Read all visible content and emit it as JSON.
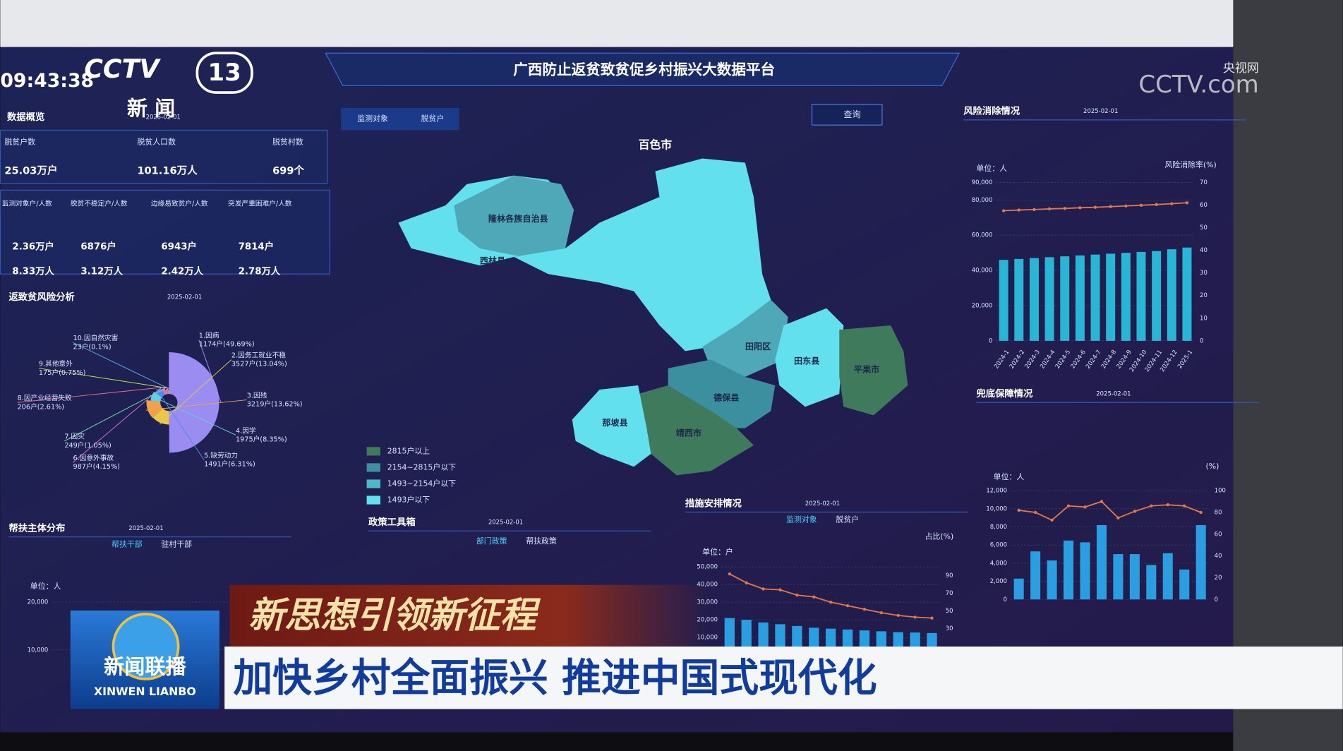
{
  "broadcast": {
    "clock": "09:43:38",
    "channel_logo": "CCTV",
    "channel_number": "13",
    "channel_name": "新 闻",
    "watermark_top": "央视网",
    "watermark_logo": "CCTV.com",
    "program_name": "新闻联播",
    "program_pinyin": "XINWEN LIANBO",
    "slogan": "新思想引领新征程",
    "headline": "加快乡村全面振兴 推进中国式现代化"
  },
  "dashboard": {
    "title": "广西防止返贫致贫促乡村振兴大数据平台",
    "search": "查询",
    "map_tabs": [
      "监测对象",
      "脱贫户"
    ],
    "overview": {
      "title": "数据概览",
      "date": "2025-02-01",
      "stats": [
        {
          "label": "脱贫户数",
          "value": "25.03万户"
        },
        {
          "label": "脱贫人口数",
          "value": "101.16万人"
        },
        {
          "label": "脱贫村数",
          "value": "699个"
        }
      ],
      "monitor": [
        {
          "label": "监测对象户/人数",
          "values": [
            "2.36万户",
            "8.33万人"
          ]
        },
        {
          "label": "脱贫不稳定户/人数",
          "values": [
            "6876户",
            "3.12万人"
          ]
        },
        {
          "label": "边缘易致贫户/人数",
          "values": [
            "6943户",
            "2.42万人"
          ]
        },
        {
          "label": "突发严重困难户/人数",
          "values": [
            "7814户",
            "2.78万人"
          ]
        }
      ]
    },
    "risk": {
      "title": "返致贫风险分析",
      "date": "2025-02-01",
      "chart": {
        "type": "pie",
        "names": [
          "1.因病",
          "2.因务工就业不稳",
          "3.因残",
          "4.因学",
          "5.缺劳动力",
          "6.因意外事故",
          "7.因灾",
          "8.因产业经营失败",
          "9.其他意外",
          "10.因自然灾害"
        ],
        "values": [
          49.69,
          13.04,
          13.62,
          8.35,
          6.31,
          4.15,
          1.05,
          2.61,
          0.75,
          0.1
        ],
        "value_labels": [
          "1174户(49.69%)",
          "3527户(13.04%)",
          "3219户(13.62%)",
          "1975户(8.35%)",
          "1491户(6.31%)",
          "987户(4.15%)",
          "249户(1.05%)",
          "206户(2.61%)",
          "175户(0.75%)",
          "23户(0.1%)"
        ],
        "colors": [
          "#9a8cf0",
          "#e8c84a",
          "#f0a24a",
          "#5fd0e8",
          "#4a8ef0",
          "#d86ad8",
          "#6ae0a8",
          "#f06a8a",
          "#c0e050",
          "#50b0f0"
        ]
      }
    },
    "map": {
      "city": "百色市",
      "regions": [
        "隆林各族自治县",
        "西林县",
        "田阳区",
        "田东县",
        "德保县",
        "靖西市",
        "平果市",
        "那坡县"
      ],
      "legend": [
        {
          "label": "2815户以上",
          "color": "#3f7a5c"
        },
        {
          "label": "2154~2815户以下",
          "color": "#3b8f9e"
        },
        {
          "label": "1493~2154户以下",
          "color": "#4fb8c8"
        },
        {
          "label": "1493户以下",
          "color": "#63e0ee"
        }
      ]
    },
    "support": {
      "title": "帮扶主体分布",
      "date": "2025-02-01",
      "tabs": [
        "帮扶干部",
        "驻村干部"
      ],
      "unit": "单位：人",
      "chart": {
        "type": "bar",
        "ylim": [
          0,
          20000
        ],
        "yticks": [
          {
            "value": 10000,
            "label": "10,000"
          },
          {
            "value": 20000,
            "label": "20,000"
          }
        ]
      }
    },
    "policy": {
      "title": "政策工具箱",
      "date": "2025-02-01",
      "tabs": [
        "部门政策",
        "帮扶政策"
      ]
    },
    "measures": {
      "title": "措施安排情况",
      "date": "2025-02-01",
      "tabs": [
        "监测对象",
        "脱贫户"
      ],
      "unit": "单位：户",
      "unit2": "占比(%)",
      "chart": {
        "type": "bar",
        "categories": [
          null,
          null,
          null,
          null,
          null,
          null,
          null,
          null,
          null,
          null,
          null,
          null,
          null
        ],
        "ylim": [
          0,
          50000
        ],
        "yticks": [
          {
            "value": 10000,
            "label": "10,000"
          },
          {
            "value": 20000,
            "label": "20,000"
          },
          {
            "value": 30000,
            "label": "30,000"
          },
          {
            "value": 40000,
            "label": "40,000"
          },
          {
            "value": 50000,
            "label": "50,000"
          }
        ],
        "y2lim": [
          0,
          100
        ],
        "y2ticks": [
          30,
          50,
          70,
          90
        ],
        "series": [
          {
            "type": "bar",
            "color": "#2a9ee0",
            "values": [
              21000,
              20000,
              18500,
              17500,
              16500,
              15500,
              15000,
              14500,
              14000,
              13500,
              13000,
              12800,
              12500
            ]
          },
          {
            "type": "line",
            "axis": "y2",
            "color": "#e0784a",
            "values": [
              92,
              82,
              75,
              74,
              68,
              66,
              60,
              56,
              52,
              48,
              45,
              43,
              42
            ]
          }
        ]
      }
    },
    "elimination": {
      "title": "风险消除情况",
      "date": "2025-02-01",
      "unit": "单位：人",
      "unit2": "风险消除率(%)",
      "chart": {
        "type": "bar",
        "categories": [
          "2024-1",
          "2024-2",
          "2024-3",
          "2024-4",
          "2024-5",
          "2024-6",
          "2024-7",
          "2024-8",
          "2024-9",
          "2024-10",
          "2024-11",
          "2024-12",
          "2025-1"
        ],
        "ylim": [
          0,
          90000
        ],
        "yticks": [
          0,
          {
            "value": 20000,
            "label": "20,000"
          },
          {
            "value": 40000,
            "label": "40,000"
          },
          {
            "value": 60000,
            "label": "60,000"
          },
          {
            "value": 80000,
            "label": "80,000"
          },
          {
            "value": 90000,
            "label": "90,000"
          }
        ],
        "y2lim": [
          0,
          70
        ],
        "y2ticks": [
          0,
          10,
          20,
          30,
          40,
          50,
          60,
          70
        ],
        "series": [
          {
            "type": "bar",
            "color": "#29b6d6",
            "values": [
              46000,
              46500,
              47000,
              47500,
              48000,
              48500,
              49000,
              49500,
              50000,
              50500,
              51000,
              52000,
              53000
            ]
          },
          {
            "type": "line",
            "axis": "y2",
            "color": "#e0784a",
            "values": [
              57.5,
              57.8,
              58,
              58.3,
              58.5,
              58.8,
              59,
              59.3,
              59.6,
              59.9,
              60.2,
              60.6,
              61
            ]
          }
        ]
      }
    },
    "security": {
      "title": "兜底保障情况",
      "date": "2025-02-01",
      "unit": "单位：人",
      "unit2": "(%)",
      "chart": {
        "type": "bar",
        "categories": [
          null,
          null,
          null,
          null,
          null,
          null,
          null,
          null,
          null,
          null,
          null,
          null
        ],
        "ylim": [
          0,
          12000
        ],
        "yticks": [
          0,
          {
            "value": 2000,
            "label": "2,000"
          },
          {
            "value": 4000,
            "label": "4,000"
          },
          {
            "value": 6000,
            "label": "6,000"
          },
          {
            "value": 8000,
            "label": "8,000"
          },
          {
            "value": 10000,
            "label": "10,000"
          },
          {
            "value": 12000,
            "label": "12,000"
          }
        ],
        "y2lim": [
          0,
          100
        ],
        "y2ticks": [
          0,
          20,
          40,
          60,
          80,
          100
        ],
        "series": [
          {
            "type": "bar",
            "color": "#2a9ee0",
            "values": [
              2300,
              5300,
              4300,
              6500,
              6300,
              8200,
              5000,
              5000,
              3800,
              5100,
              3300,
              8200
            ]
          },
          {
            "type": "line",
            "axis": "y2",
            "color": "#e0784a",
            "values": [
              82,
              80,
              73,
              86,
              85,
              90,
              75,
              81,
              86,
              87,
              86,
              80
            ]
          }
        ]
      }
    }
  }
}
